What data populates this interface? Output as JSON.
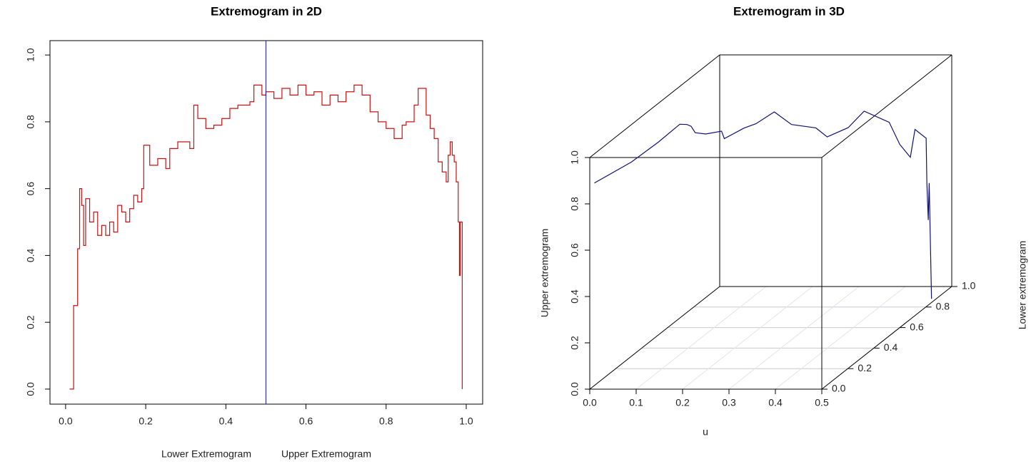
{
  "chart_data": [
    {
      "type": "step",
      "title": "Extremogram in 2D",
      "xlabels": [
        "Lower Extremogram",
        "Upper Extremogram"
      ],
      "color": "#cc1111",
      "vline": 0.5,
      "vline_color": "#1a1aa8",
      "x": [
        0.01,
        0.02,
        0.03,
        0.035,
        0.04,
        0.045,
        0.05,
        0.06,
        0.07,
        0.08,
        0.09,
        0.1,
        0.11,
        0.12,
        0.13,
        0.14,
        0.15,
        0.16,
        0.17,
        0.18,
        0.19,
        0.195,
        0.21,
        0.23,
        0.25,
        0.26,
        0.28,
        0.31,
        0.32,
        0.33,
        0.35,
        0.37,
        0.39,
        0.41,
        0.43,
        0.46,
        0.47,
        0.49,
        0.5,
        0.52,
        0.54,
        0.56,
        0.58,
        0.6,
        0.62,
        0.64,
        0.66,
        0.68,
        0.7,
        0.72,
        0.74,
        0.76,
        0.78,
        0.8,
        0.82,
        0.84,
        0.85,
        0.87,
        0.88,
        0.9,
        0.91,
        0.92,
        0.93,
        0.94,
        0.95,
        0.955,
        0.96,
        0.965,
        0.97,
        0.975,
        0.98,
        0.983,
        0.985,
        0.99
      ],
      "values": [
        0,
        0.25,
        0.42,
        0.6,
        0.55,
        0.43,
        0.57,
        0.5,
        0.53,
        0.46,
        0.49,
        0.46,
        0.5,
        0.47,
        0.55,
        0.53,
        0.5,
        0.54,
        0.58,
        0.56,
        0.6,
        0.73,
        0.67,
        0.69,
        0.66,
        0.72,
        0.74,
        0.72,
        0.85,
        0.81,
        0.78,
        0.79,
        0.81,
        0.84,
        0.85,
        0.86,
        0.91,
        0.88,
        0.89,
        0.87,
        0.9,
        0.88,
        0.91,
        0.88,
        0.89,
        0.85,
        0.88,
        0.86,
        0.89,
        0.91,
        0.88,
        0.83,
        0.8,
        0.78,
        0.75,
        0.79,
        0.8,
        0.85,
        0.9,
        0.82,
        0.78,
        0.75,
        0.68,
        0.65,
        0.62,
        0.7,
        0.74,
        0.7,
        0.68,
        0.62,
        0.5,
        0.34,
        0.5,
        0
      ],
      "xlim": [
        -0.039,
        1.041
      ],
      "ylim": [
        -0.045,
        1.043
      ],
      "xticks": [
        {
          "value": 0,
          "label": "0.0"
        },
        0.2,
        0.4,
        0.6,
        0.8,
        {
          "value": 1,
          "label": "1.0"
        }
      ],
      "yticks": [
        {
          "value": 0,
          "label": "0.0"
        },
        0.2,
        0.4,
        0.6,
        0.8,
        {
          "value": 1,
          "label": "1.0"
        }
      ]
    },
    {
      "type": "line3d",
      "title": "Extremogram in 3D",
      "xlabel": "u",
      "ylabel": "Lower extremogram",
      "zlabel": "Upper extremogram",
      "color": "#10107a",
      "x": [
        0.01,
        0.02,
        0.03,
        0.04,
        0.05,
        0.07,
        0.09,
        0.11,
        0.13,
        0.15,
        0.17,
        0.19,
        0.21,
        0.25,
        0.28,
        0.31,
        0.33,
        0.37,
        0.41,
        0.43,
        0.45,
        0.46,
        0.47,
        0.48,
        0.483,
        0.485,
        0.49
      ],
      "y": [
        0,
        0.25,
        0.42,
        0.55,
        0.57,
        0.53,
        0.49,
        0.5,
        0.55,
        0.5,
        0.58,
        0.6,
        0.67,
        0.66,
        0.74,
        0.72,
        0.81,
        0.79,
        0.84,
        0.85,
        0.86,
        0.86,
        0.91,
        0.88,
        0.88,
        0.88,
        0.88
      ],
      "z": [
        0.89,
        0.87,
        0.88,
        0.9,
        0.89,
        0.9,
        0.89,
        0.88,
        0.87,
        0.86,
        0.87,
        0.88,
        0.9,
        0.85,
        0.8,
        0.77,
        0.77,
        0.85,
        0.78,
        0.68,
        0.62,
        0.74,
        0.68,
        0.5,
        0.34,
        0.5,
        0
      ],
      "xlim": [
        0,
        0.5
      ],
      "ylim": [
        0,
        1
      ],
      "zlim": [
        0,
        1
      ],
      "xticks": [
        {
          "value": 0,
          "label": "0.0"
        },
        0.1,
        0.2,
        0.3,
        0.4,
        0.5
      ],
      "yticks": [
        {
          "value": 0,
          "label": "0.0"
        },
        0.2,
        0.4,
        0.6,
        0.8,
        {
          "value": 1,
          "label": "1.0"
        }
      ],
      "zticks": [
        {
          "value": 0,
          "label": "0.0"
        },
        0.2,
        0.4,
        0.6,
        0.8,
        {
          "value": 1,
          "label": "1.0"
        }
      ]
    }
  ]
}
